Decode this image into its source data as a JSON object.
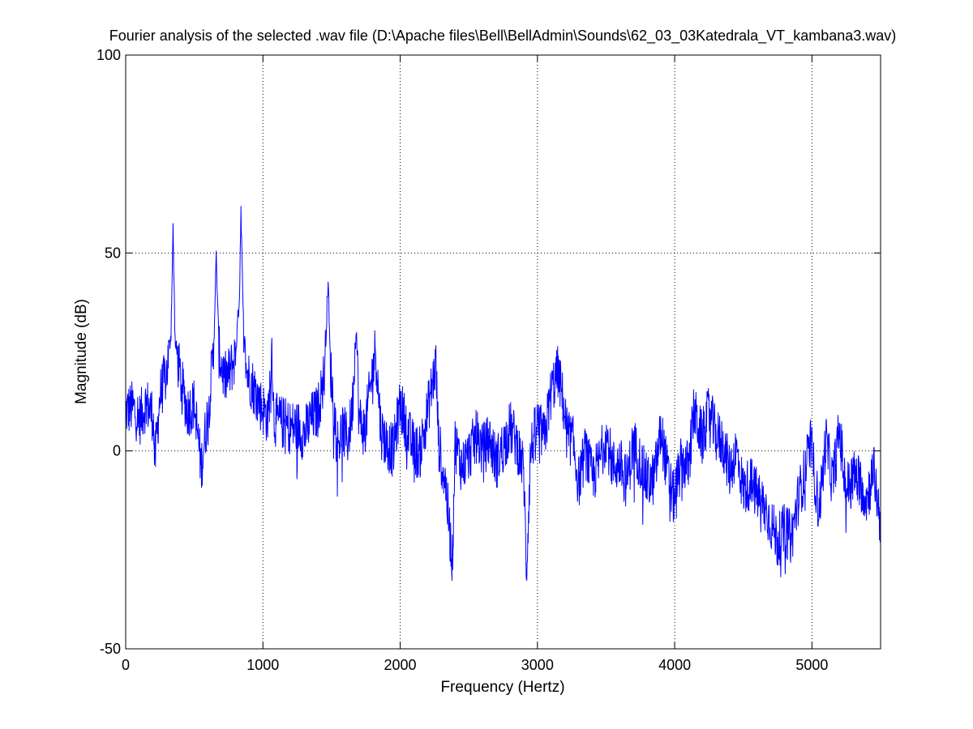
{
  "chart_data": {
    "type": "line",
    "title": "Fourier analysis of the selected .wav file (D:\\Apache files\\Bell\\BellAdmin\\Sounds\\62_03_03Katedrala_VT_kambana3.wav)",
    "xlabel": "Frequency (Hertz)",
    "ylabel": "Magnitude (dB)",
    "xlim": [
      0,
      5500
    ],
    "ylim": [
      -50,
      100
    ],
    "xticks": [
      0,
      1000,
      2000,
      3000,
      4000,
      5000
    ],
    "yticks": [
      -50,
      0,
      50,
      100
    ],
    "xtick_labels": [
      "0",
      "1000",
      "2000",
      "3000",
      "4000",
      "5000"
    ],
    "ytick_labels": [
      "-50",
      "0",
      "50",
      "100"
    ],
    "grid": true,
    "grid_style": "dotted",
    "line_color": "#0000ff",
    "series": [
      {
        "x": [
          0,
          50,
          100,
          150,
          200,
          212,
          250,
          300,
          330,
          345,
          360,
          400,
          450,
          500,
          550,
          600,
          640,
          660,
          680,
          720,
          760,
          800,
          830,
          840,
          855,
          880,
          920,
          980,
          1040,
          1065,
          1080,
          1150,
          1200,
          1260,
          1300,
          1350,
          1400,
          1450,
          1475,
          1490,
          1540,
          1580,
          1620,
          1650,
          1680,
          1700,
          1740,
          1780,
          1820,
          1860,
          1900,
          1950,
          2000,
          2080,
          2140,
          2200,
          2260,
          2280,
          2330,
          2380,
          2400,
          2450,
          2500,
          2560,
          2600,
          2650,
          2700,
          2750,
          2800,
          2850,
          2900,
          2920,
          2950,
          3000,
          3050,
          3100,
          3150,
          3180,
          3220,
          3260,
          3300,
          3350,
          3400,
          3450,
          3500,
          3550,
          3600,
          3650,
          3700,
          3750,
          3800,
          3850,
          3900,
          3950,
          3990,
          4050,
          4100,
          4140,
          4200,
          4250,
          4300,
          4350,
          4400,
          4450,
          4500,
          4550,
          4600,
          4650,
          4700,
          4750,
          4800,
          4850,
          4900,
          4950,
          4990,
          5050,
          5080,
          5100,
          5150,
          5200,
          5250,
          5300,
          5350,
          5400,
          5450,
          5500
        ],
        "y": [
          10,
          11,
          8,
          12,
          9,
          -3,
          14,
          20,
          30,
          56,
          28,
          18,
          10,
          12,
          -4,
          10,
          25,
          49,
          25,
          18,
          20,
          24,
          40,
          62,
          35,
          20,
          17,
          12,
          8,
          28,
          8,
          7,
          6,
          6,
          4,
          8,
          10,
          20,
          44,
          22,
          2,
          5,
          3,
          10,
          32,
          8,
          5,
          15,
          26,
          5,
          2,
          0,
          12,
          2,
          -1,
          10,
          22,
          2,
          -8,
          -28,
          2,
          -4,
          -1,
          4,
          0,
          3,
          -3,
          1,
          6,
          2,
          -5,
          -31,
          0,
          7,
          3,
          15,
          20,
          14,
          4,
          2,
          -8,
          0,
          -7,
          -3,
          4,
          -4,
          -3,
          -8,
          2,
          -3,
          -8,
          -7,
          5,
          -6,
          -12,
          -3,
          -4,
          10,
          3,
          10,
          4,
          2,
          -5,
          0,
          -10,
          -8,
          -11,
          -14,
          -18,
          -23,
          -20,
          -22,
          -12,
          -5,
          2,
          -15,
          -6,
          3,
          -8,
          5,
          -10,
          -6,
          -8,
          -12,
          -5,
          -18
        ]
      }
    ]
  }
}
